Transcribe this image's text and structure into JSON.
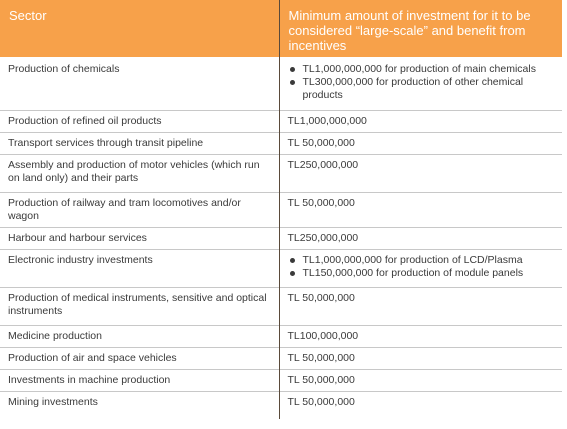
{
  "header": {
    "sector": "Sector",
    "minimum": "Minimum amount of investment for it to be considered “large-scale” and benefit from incentives"
  },
  "rows": [
    {
      "sector": "Production of chemicals",
      "bullets": [
        "TL1,000,000,000 for production of main chemicals",
        "TL300,000,000 for production of other chemical products"
      ]
    },
    {
      "sector": "Production of refined oil products",
      "amount": "TL1,000,000,000"
    },
    {
      "sector": "Transport services through transit pipeline",
      "amount": "TL 50,000,000"
    },
    {
      "sector": "Assembly and production of motor vehicles (which run on land only) and their parts",
      "amount": "TL250,000,000"
    },
    {
      "sector": "Production of railway and tram locomotives and/or wagon",
      "amount": "TL 50,000,000"
    },
    {
      "sector": "Harbour and harbour services",
      "amount": "TL250,000,000"
    },
    {
      "sector": "Electronic industry investments",
      "bullets": [
        "TL1,000,000,000 for production of LCD/Plasma",
        "TL150,000,000 for production of module panels"
      ]
    },
    {
      "sector": "Production of medical instruments, sensitive and optical instruments",
      "amount": "TL 50,000,000"
    },
    {
      "sector": "Medicine production",
      "amount": "TL100,000,000"
    },
    {
      "sector": "Production of air and space vehicles",
      "amount": "TL 50,000,000"
    },
    {
      "sector": "Investments in machine production",
      "amount": "TL 50,000,000"
    },
    {
      "sector": "Mining investments",
      "amount": "TL 50,000,000"
    }
  ],
  "colors": {
    "header_bg": "#f7a14a",
    "header_text": "#ffffff",
    "row_divider": "#c8c8c8",
    "column_divider": "#5a4a3a"
  }
}
